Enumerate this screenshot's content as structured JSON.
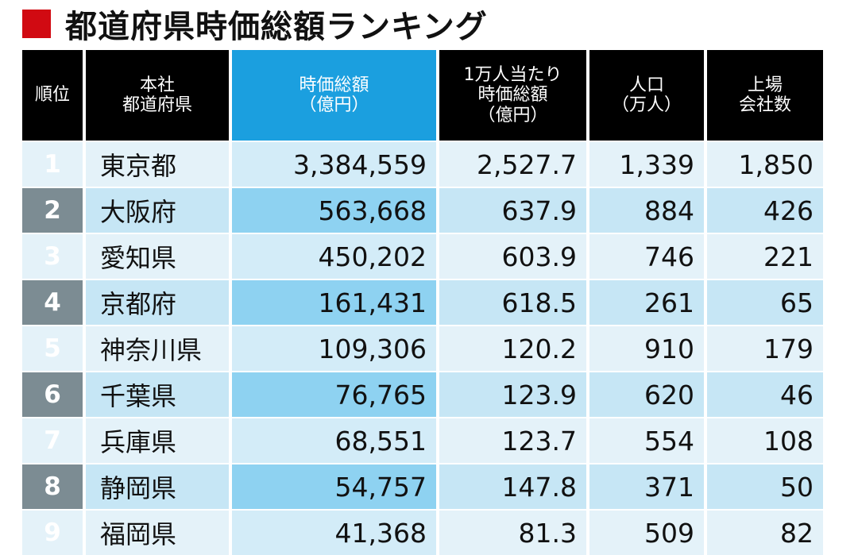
{
  "title": "都道府県時価総額ランキング",
  "headers": [
    "順位",
    "本社\n都道府県",
    "時価総額\n（億円）",
    "1万人当たり\n時価総額\n（億円）",
    "人口\n（万人）",
    "上場\n会社数"
  ],
  "rows": [
    [
      "1",
      "東京都",
      "3,384,559",
      "2,527.7",
      "1,339",
      "1,850"
    ],
    [
      "2",
      "大阪府",
      "563,668",
      "637.9",
      "884",
      "426"
    ],
    [
      "3",
      "愛知県",
      "450,202",
      "603.9",
      "746",
      "221"
    ],
    [
      "4",
      "京都府",
      "161,431",
      "618.5",
      "261",
      "65"
    ],
    [
      "5",
      "神奈川県",
      "109,306",
      "120.2",
      "910",
      "179"
    ],
    [
      "6",
      "千葉県",
      "76,765",
      "123.9",
      "620",
      "46"
    ],
    [
      "7",
      "兵庫県",
      "68,551",
      "123.7",
      "554",
      "108"
    ],
    [
      "8",
      "静岡県",
      "54,757",
      "147.8",
      "371",
      "50"
    ],
    [
      "9",
      "福岡県",
      "41,368",
      "81.3",
      "509",
      "82"
    ]
  ],
  "colors": {
    "accent_red": "#d10a12",
    "header_black": "#000000",
    "header_blue": "#1b9fdf"
  }
}
